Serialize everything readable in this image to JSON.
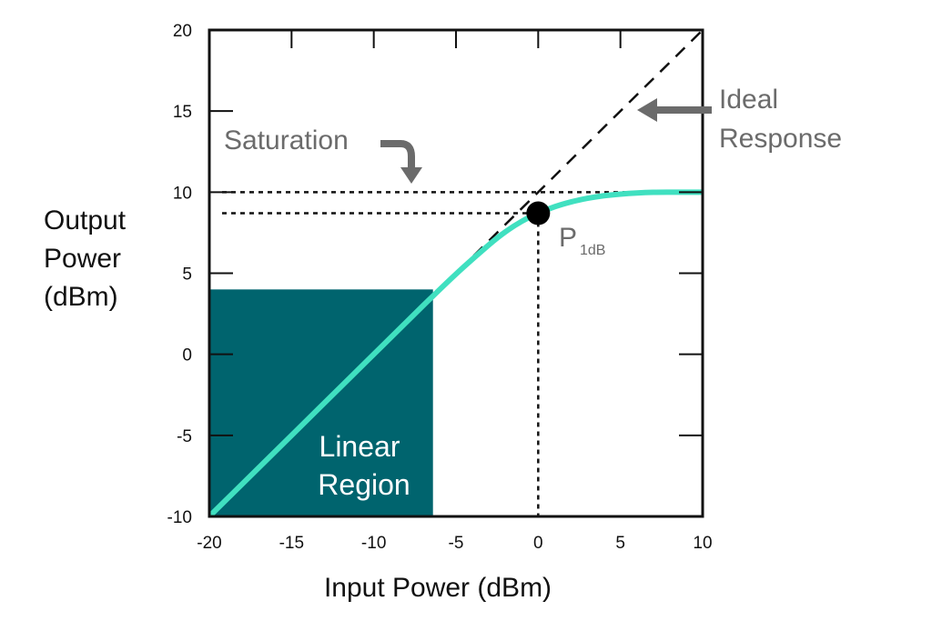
{
  "chart_data": {
    "type": "line",
    "xlabel": "Input Power (dBm)",
    "ylabel_lines": [
      "Output",
      "Power",
      "(dBm)"
    ],
    "xlim": [
      -20,
      10
    ],
    "ylim": [
      -10,
      20
    ],
    "x_ticks": [
      -20,
      -15,
      -10,
      -5,
      0,
      5,
      10
    ],
    "y_ticks": [
      -10,
      -5,
      0,
      5,
      10,
      15,
      20
    ],
    "x_tick_labels": [
      "-20",
      "-15",
      "-10",
      "-5",
      "0",
      "5",
      "10"
    ],
    "y_tick_labels": [
      "-10",
      "-5",
      "0",
      "5",
      "10",
      "15",
      "20"
    ],
    "series": [
      {
        "style": "solid",
        "color": "#40e0c0",
        "x": [
          -20,
          -15,
          -10,
          -7,
          -5,
          -3,
          -2,
          -1,
          0,
          1,
          2,
          3,
          4,
          5,
          6,
          7,
          8,
          9,
          10
        ],
        "y": [
          -10,
          -5,
          0,
          3,
          4.95,
          6.75,
          7.55,
          8.2,
          8.7,
          9.1,
          9.4,
          9.62,
          9.78,
          9.88,
          9.95,
          9.99,
          10.0,
          10.0,
          10.0
        ]
      },
      {
        "style": "dashed",
        "color": "#111111",
        "x": [
          -20,
          10
        ],
        "y": [
          -10,
          20
        ]
      }
    ],
    "reference_lines": {
      "saturation_y": 10,
      "p1db_y": 8.7,
      "p1db_x": 0
    },
    "shaded_region": {
      "color": "#00646e",
      "x_range": [
        -20,
        -6.4
      ],
      "y_range": [
        -10,
        4
      ]
    },
    "marker": {
      "x": 0,
      "y": 8.7,
      "color": "#000000"
    },
    "annotations": {
      "saturation": "Saturation",
      "ideal_line1": "Ideal",
      "ideal_line2": "Response",
      "linear_line1": "Linear",
      "linear_line2": "Region",
      "p1db_main": "P",
      "p1db_sub": "1dB"
    },
    "annotation_color": "#6b6b6b",
    "grid": false,
    "legend": "none"
  }
}
